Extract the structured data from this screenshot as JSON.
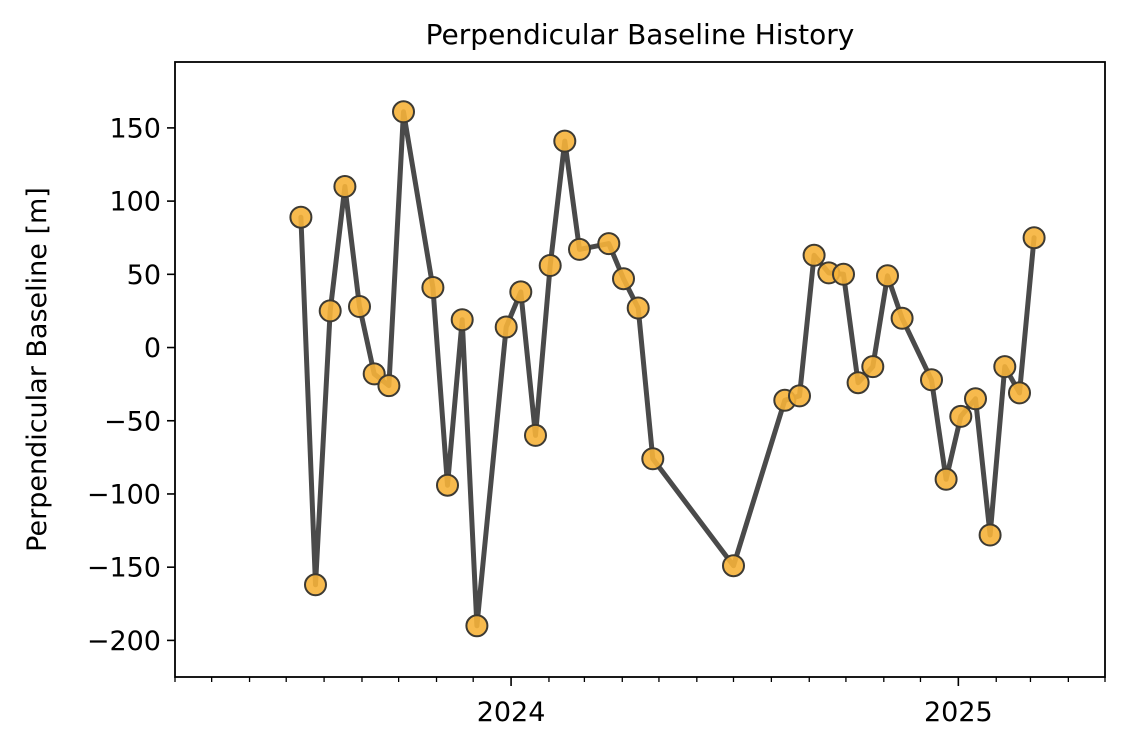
{
  "chart_data": {
    "type": "line",
    "title": "Perpendicular Baseline History",
    "xlabel": "",
    "ylabel": "Perpendicular Baseline [m]",
    "x_axis_type": "date",
    "xlim": [
      "2023-04-01",
      "2025-05-01"
    ],
    "ylim": [
      -225,
      195
    ],
    "y_ticks": [
      150,
      100,
      50,
      0,
      -50,
      -100,
      -150,
      -200
    ],
    "x_major_ticks": [
      {
        "date": "2024-01-01",
        "label": "2024"
      },
      {
        "date": "2025-01-01",
        "label": "2025"
      }
    ],
    "x_minor_ticks": [
      "2023-04-01",
      "2023-05-01",
      "2023-06-01",
      "2023-07-01",
      "2023-08-01",
      "2023-09-01",
      "2023-10-01",
      "2023-11-01",
      "2023-12-01",
      "2024-02-01",
      "2024-03-01",
      "2024-04-01",
      "2024-05-01",
      "2024-06-01",
      "2024-07-01",
      "2024-08-01",
      "2024-09-01",
      "2024-10-01",
      "2024-11-01",
      "2024-12-01",
      "2025-02-01",
      "2025-03-01",
      "2025-04-01",
      "2025-05-01"
    ],
    "grid": false,
    "legend": "none",
    "line_color": "#4a4a4a",
    "marker_fill": "#f6b23a",
    "marker_edge": "#3d3a33",
    "series": [
      {
        "x": [
          "2023-07-13",
          "2023-07-25",
          "2023-08-06",
          "2023-08-18",
          "2023-08-30",
          "2023-09-11",
          "2023-09-23",
          "2023-10-05",
          "2023-10-29",
          "2023-11-10",
          "2023-11-22",
          "2023-12-04",
          "2023-12-28",
          "2024-01-09",
          "2024-01-21",
          "2024-02-02",
          "2024-02-14",
          "2024-02-26",
          "2024-03-21",
          "2024-04-02",
          "2024-04-14",
          "2024-04-26",
          "2024-07-01",
          "2024-08-12",
          "2024-08-24",
          "2024-09-05",
          "2024-09-17",
          "2024-09-29",
          "2024-10-11",
          "2024-10-23",
          "2024-11-04",
          "2024-11-16",
          "2024-12-10",
          "2024-12-22",
          "2025-01-03",
          "2025-01-15",
          "2025-01-27",
          "2025-02-08",
          "2025-02-20",
          "2025-03-04"
        ],
        "y": [
          89,
          -162,
          25,
          110,
          28,
          -18,
          -26,
          161,
          41,
          -94,
          19,
          -190,
          14,
          38,
          -60,
          56,
          141,
          67,
          71,
          47,
          27,
          -76,
          -149,
          -36,
          -33,
          63,
          51,
          50,
          -24,
          -13,
          49,
          20,
          -22,
          -90,
          -47,
          -35,
          -128,
          -13,
          -31,
          75
        ]
      }
    ]
  }
}
